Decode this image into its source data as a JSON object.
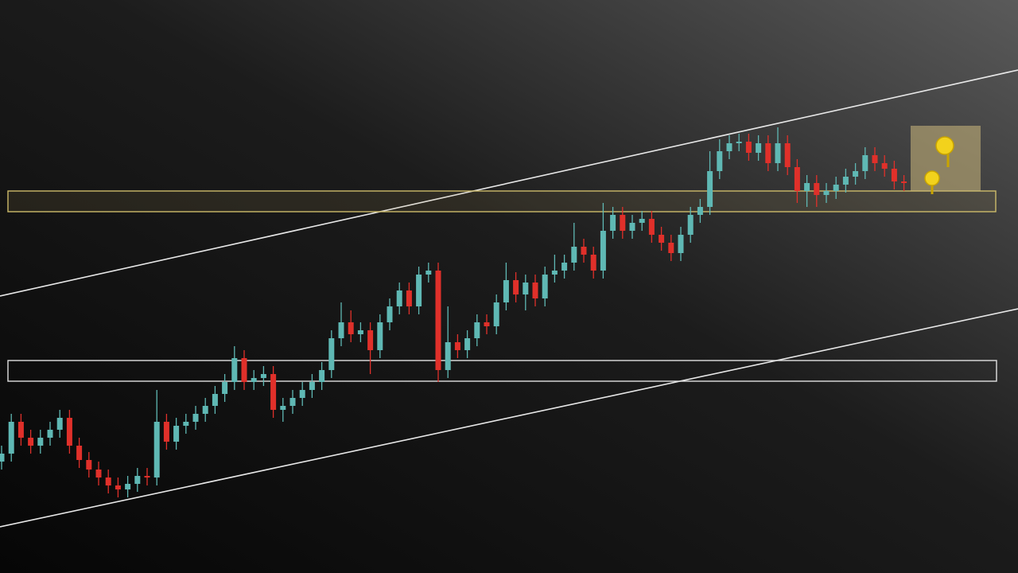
{
  "chart_data": {
    "type": "candlestick",
    "up_color": "#5fb8b4",
    "down_color": "#e0302a",
    "ylim": [
      0,
      720
    ],
    "candles": [
      [
        140,
        160,
        130,
        150
      ],
      [
        150,
        200,
        140,
        190
      ],
      [
        190,
        200,
        160,
        170
      ],
      [
        170,
        180,
        150,
        160
      ],
      [
        160,
        180,
        150,
        170
      ],
      [
        170,
        190,
        160,
        180
      ],
      [
        180,
        205,
        170,
        195
      ],
      [
        195,
        205,
        150,
        160
      ],
      [
        160,
        170,
        132,
        142
      ],
      [
        142,
        152,
        120,
        130
      ],
      [
        130,
        140,
        110,
        120
      ],
      [
        120,
        130,
        100,
        110
      ],
      [
        110,
        120,
        95,
        105
      ],
      [
        105,
        122,
        95,
        112
      ],
      [
        112,
        132,
        102,
        122
      ],
      [
        122,
        132,
        110,
        120
      ],
      [
        120,
        230,
        110,
        190
      ],
      [
        190,
        200,
        155,
        165
      ],
      [
        165,
        195,
        155,
        185
      ],
      [
        185,
        200,
        175,
        190
      ],
      [
        190,
        210,
        180,
        200
      ],
      [
        200,
        220,
        190,
        210
      ],
      [
        210,
        235,
        200,
        225
      ],
      [
        225,
        250,
        215,
        240
      ],
      [
        240,
        285,
        230,
        270
      ],
      [
        270,
        280,
        230,
        240
      ],
      [
        240,
        255,
        230,
        245
      ],
      [
        245,
        260,
        235,
        250
      ],
      [
        250,
        260,
        195,
        205
      ],
      [
        205,
        220,
        190,
        210
      ],
      [
        210,
        230,
        200,
        220
      ],
      [
        220,
        240,
        210,
        230
      ],
      [
        230,
        250,
        220,
        240
      ],
      [
        240,
        265,
        230,
        255
      ],
      [
        255,
        305,
        245,
        295
      ],
      [
        295,
        340,
        285,
        315
      ],
      [
        315,
        330,
        290,
        300
      ],
      [
        300,
        315,
        290,
        305
      ],
      [
        305,
        315,
        250,
        280
      ],
      [
        280,
        325,
        270,
        315
      ],
      [
        315,
        345,
        305,
        335
      ],
      [
        335,
        365,
        325,
        355
      ],
      [
        355,
        365,
        325,
        335
      ],
      [
        335,
        385,
        325,
        375
      ],
      [
        375,
        390,
        365,
        380
      ],
      [
        380,
        390,
        240,
        255
      ],
      [
        255,
        335,
        245,
        290
      ],
      [
        290,
        300,
        270,
        280
      ],
      [
        280,
        305,
        270,
        295
      ],
      [
        295,
        325,
        285,
        315
      ],
      [
        315,
        325,
        300,
        310
      ],
      [
        310,
        350,
        300,
        340
      ],
      [
        340,
        390,
        330,
        368
      ],
      [
        368,
        378,
        340,
        350
      ],
      [
        350,
        375,
        330,
        365
      ],
      [
        365,
        375,
        335,
        345
      ],
      [
        345,
        385,
        335,
        375
      ],
      [
        375,
        400,
        365,
        380
      ],
      [
        380,
        400,
        370,
        390
      ],
      [
        390,
        440,
        380,
        410
      ],
      [
        410,
        420,
        390,
        400
      ],
      [
        400,
        410,
        370,
        380
      ],
      [
        380,
        465,
        370,
        430
      ],
      [
        430,
        460,
        420,
        450
      ],
      [
        450,
        460,
        420,
        430
      ],
      [
        430,
        450,
        420,
        440
      ],
      [
        440,
        455,
        430,
        445
      ],
      [
        445,
        455,
        415,
        425
      ],
      [
        425,
        435,
        405,
        415
      ],
      [
        415,
        425,
        392,
        402
      ],
      [
        402,
        435,
        392,
        425
      ],
      [
        425,
        460,
        415,
        450
      ],
      [
        450,
        470,
        440,
        460
      ],
      [
        460,
        530,
        450,
        505
      ],
      [
        505,
        545,
        495,
        530
      ],
      [
        530,
        550,
        520,
        540
      ],
      [
        540,
        552,
        530,
        542
      ],
      [
        542,
        552,
        518,
        528
      ],
      [
        528,
        550,
        518,
        540
      ],
      [
        540,
        550,
        505,
        515
      ],
      [
        515,
        560,
        505,
        540
      ],
      [
        540,
        550,
        500,
        510
      ],
      [
        510,
        520,
        465,
        480
      ],
      [
        480,
        500,
        460,
        490
      ],
      [
        490,
        500,
        460,
        475
      ],
      [
        475,
        490,
        465,
        480
      ],
      [
        480,
        498,
        470,
        488
      ],
      [
        488,
        508,
        478,
        498
      ],
      [
        498,
        515,
        488,
        505
      ],
      [
        505,
        535,
        495,
        525
      ],
      [
        525,
        535,
        505,
        515
      ],
      [
        515,
        525,
        498,
        508
      ],
      [
        508,
        518,
        482,
        492
      ],
      [
        492,
        500,
        480,
        490
      ]
    ]
  }
}
